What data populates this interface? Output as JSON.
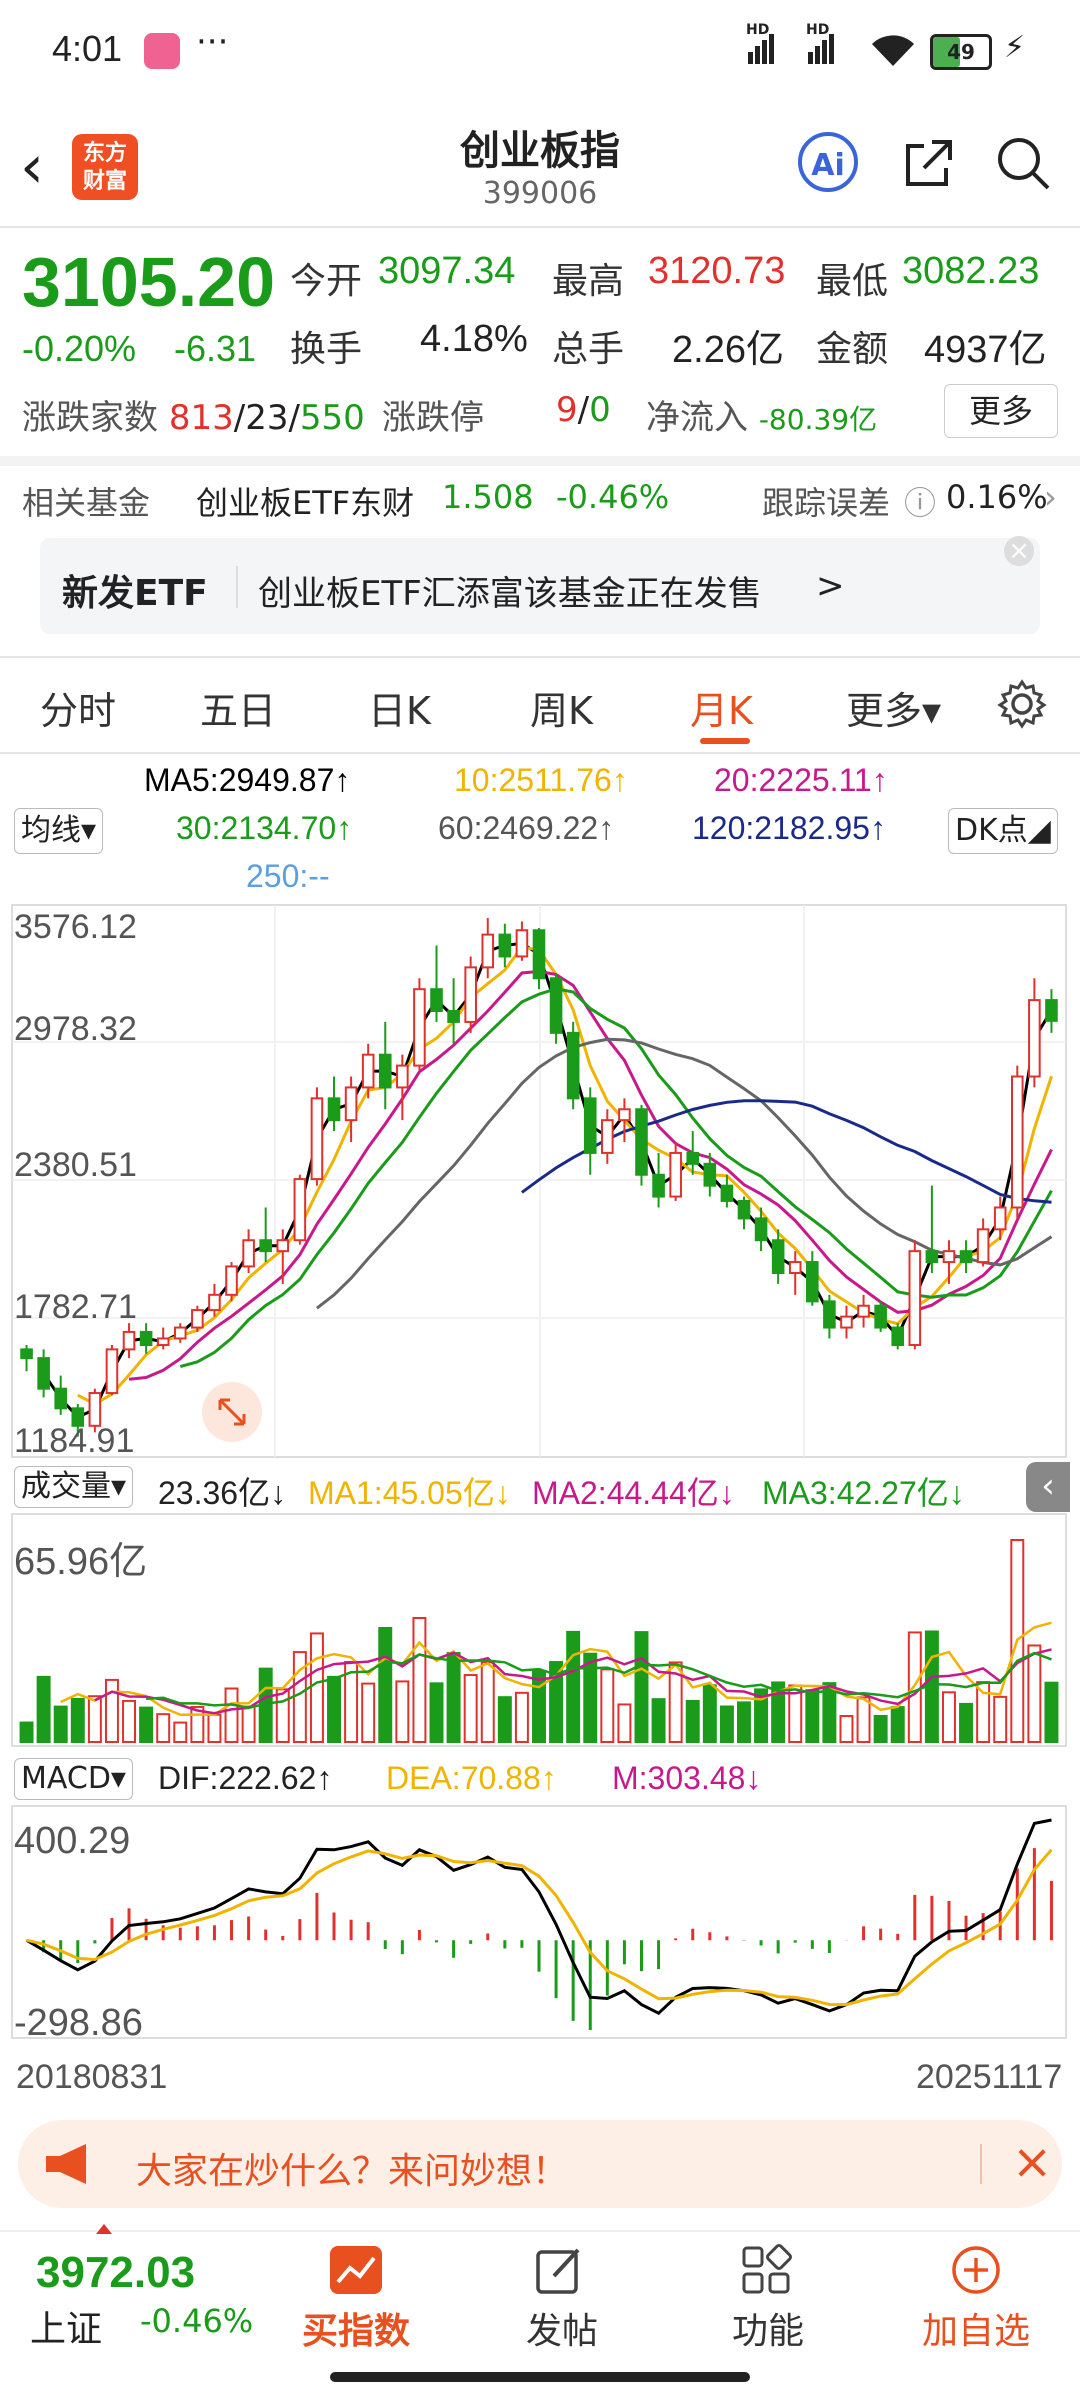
{
  "status_bar": {
    "time": "4:01",
    "dots": "···",
    "battery": "49",
    "network_1": "HD",
    "network_2": "HD"
  },
  "header": {
    "back": "‹",
    "logo_line1": "东方",
    "logo_line2": "财富",
    "title": "创业板指",
    "code": "399006",
    "ai_label": "Ai"
  },
  "quote": {
    "price": "3105.20",
    "pct": "-0.20%",
    "chg": "-6.31",
    "open_label": "今开",
    "open": "3097.34",
    "high_label": "最高",
    "high": "3120.73",
    "low_label": "最低",
    "low": "3082.23",
    "turnover_label": "换手",
    "turnover": "4.18%",
    "volume_label": "总手",
    "volume": "2.26亿",
    "amount_label": "金额",
    "amount": "4937亿",
    "breadth_label": "涨跌家数",
    "up": "813",
    "sep1": "/",
    "flat": "23",
    "sep2": "/",
    "down": "550",
    "limit_label": "涨跌停",
    "limit_up": "9",
    "sep3": "/",
    "limit_down": "0",
    "netflow_label": "净流入",
    "netflow": "-80.39亿",
    "more": "更多"
  },
  "fund": {
    "label": "相关基金",
    "name": "创业板ETF东财",
    "price": "1.508",
    "pct": "-0.46%",
    "track_label": "跟踪误差",
    "track_value": "0.16%"
  },
  "ad": {
    "tag": "新发ETF",
    "text": "创业板ETF汇添富该基金正在发售",
    "arrow": ">",
    "close": "×"
  },
  "tabs": [
    {
      "label": "分时"
    },
    {
      "label": "五日"
    },
    {
      "label": "日K"
    },
    {
      "label": "周K"
    },
    {
      "label": "月K"
    },
    {
      "label": "更多▾"
    }
  ],
  "ma_legend": {
    "selector": "均线▾",
    "ma5": "MA5:2949.87↑",
    "ma10": "10:2511.76↑",
    "ma20": "20:2225.11↑",
    "ma30": "30:2134.70↑",
    "ma60": "60:2469.22↑",
    "ma120": "120:2182.95↑",
    "ma250": "250:--",
    "dk_button": "DK点◢"
  },
  "price_axis": [
    "3576.12",
    "2978.32",
    "2380.51",
    "1782.71",
    "1184.91"
  ],
  "volume_legend": {
    "selector": "成交量▾",
    "vol": "23.36亿↓",
    "ma1": "MA1:45.05亿↓",
    "ma2": "MA2:44.44亿↓",
    "ma3": "MA3:42.27亿↓",
    "max": "65.96亿"
  },
  "macd_legend": {
    "selector": "MACD▾",
    "dif": "DIF:222.62↑",
    "dea": "DEA:70.88↑",
    "m": "M:303.48↓",
    "max": "400.29",
    "min": "-298.86"
  },
  "date_range": {
    "start": "20180831",
    "end": "20251117"
  },
  "banner": {
    "text": "大家在炒什么？来问妙想！",
    "close": "×"
  },
  "bottom": {
    "index_price": "3972.03",
    "index_name": "上证",
    "index_pct": "-0.46%",
    "nav": [
      {
        "label": "买指数"
      },
      {
        "label": "发帖"
      },
      {
        "label": "功能"
      },
      {
        "label": "加自选"
      }
    ]
  },
  "colors": {
    "up": "#e0312d",
    "down": "#1a9b1a",
    "accent": "#e8501f",
    "ma5": "#000000",
    "ma10": "#f0b400",
    "ma20": "#c8198c",
    "ma30": "#1a9b1a",
    "ma60": "#666666",
    "ma120": "#1a2a8a",
    "ma250": "#5aa0e0"
  },
  "chart_data": {
    "type": "candlestick",
    "period": "monthly",
    "yrange": [
      1184.91,
      3576.12
    ],
    "candles": [
      [
        1600,
        1620,
        1500,
        1560
      ],
      [
        1560,
        1600,
        1380,
        1420
      ],
      [
        1420,
        1480,
        1300,
        1330
      ],
      [
        1330,
        1350,
        1200,
        1250
      ],
      [
        1250,
        1420,
        1220,
        1400
      ],
      [
        1400,
        1620,
        1390,
        1600
      ],
      [
        1600,
        1720,
        1560,
        1680
      ],
      [
        1680,
        1720,
        1580,
        1620
      ],
      [
        1620,
        1700,
        1600,
        1650
      ],
      [
        1650,
        1720,
        1630,
        1700
      ],
      [
        1700,
        1800,
        1680,
        1780
      ],
      [
        1780,
        1900,
        1750,
        1850
      ],
      [
        1850,
        2000,
        1820,
        1980
      ],
      [
        1980,
        2150,
        1950,
        2100
      ],
      [
        2100,
        2250,
        2000,
        2050
      ],
      [
        2050,
        2150,
        1900,
        2100
      ],
      [
        2100,
        2400,
        2080,
        2380
      ],
      [
        2380,
        2800,
        2350,
        2750
      ],
      [
        2750,
        2850,
        2600,
        2650
      ],
      [
        2650,
        2850,
        2550,
        2800
      ],
      [
        2800,
        3000,
        2750,
        2950
      ],
      [
        2950,
        3100,
        2700,
        2800
      ],
      [
        2800,
        2950,
        2650,
        2900
      ],
      [
        2900,
        3300,
        2880,
        3250
      ],
      [
        3250,
        3450,
        3100,
        3150
      ],
      [
        3150,
        3300,
        3000,
        3100
      ],
      [
        3100,
        3400,
        3050,
        3350
      ],
      [
        3350,
        3576,
        3300,
        3500
      ],
      [
        3500,
        3550,
        3350,
        3400
      ],
      [
        3400,
        3560,
        3380,
        3520
      ],
      [
        3520,
        3530,
        3250,
        3300
      ],
      [
        3300,
        3320,
        3000,
        3050
      ],
      [
        3050,
        3100,
        2700,
        2750
      ],
      [
        2750,
        2800,
        2400,
        2500
      ],
      [
        2500,
        2700,
        2450,
        2650
      ],
      [
        2650,
        2750,
        2550,
        2700
      ],
      [
        2700,
        2720,
        2350,
        2400
      ],
      [
        2400,
        2500,
        2250,
        2300
      ],
      [
        2300,
        2550,
        2280,
        2500
      ],
      [
        2500,
        2600,
        2400,
        2450
      ],
      [
        2450,
        2500,
        2300,
        2350
      ],
      [
        2350,
        2400,
        2250,
        2280
      ],
      [
        2280,
        2300,
        2150,
        2200
      ],
      [
        2200,
        2250,
        2050,
        2100
      ],
      [
        2100,
        2150,
        1900,
        1950
      ],
      [
        1950,
        2050,
        1850,
        2000
      ],
      [
        2000,
        2050,
        1800,
        1820
      ],
      [
        1820,
        1850,
        1650,
        1700
      ],
      [
        1700,
        1800,
        1650,
        1750
      ],
      [
        1750,
        1850,
        1700,
        1800
      ],
      [
        1800,
        1820,
        1680,
        1700
      ],
      [
        1700,
        1720,
        1600,
        1620
      ],
      [
        1620,
        2100,
        1600,
        2050
      ],
      [
        2050,
        2350,
        1950,
        2000
      ],
      [
        2000,
        2100,
        1900,
        2050
      ],
      [
        2050,
        2100,
        1950,
        2000
      ],
      [
        2000,
        2200,
        1980,
        2150
      ],
      [
        2150,
        2300,
        2100,
        2250
      ],
      [
        2250,
        2900,
        2200,
        2850
      ],
      [
        2850,
        3300,
        2800,
        3200
      ],
      [
        3200,
        3250,
        3050,
        3105
      ]
    ]
  }
}
